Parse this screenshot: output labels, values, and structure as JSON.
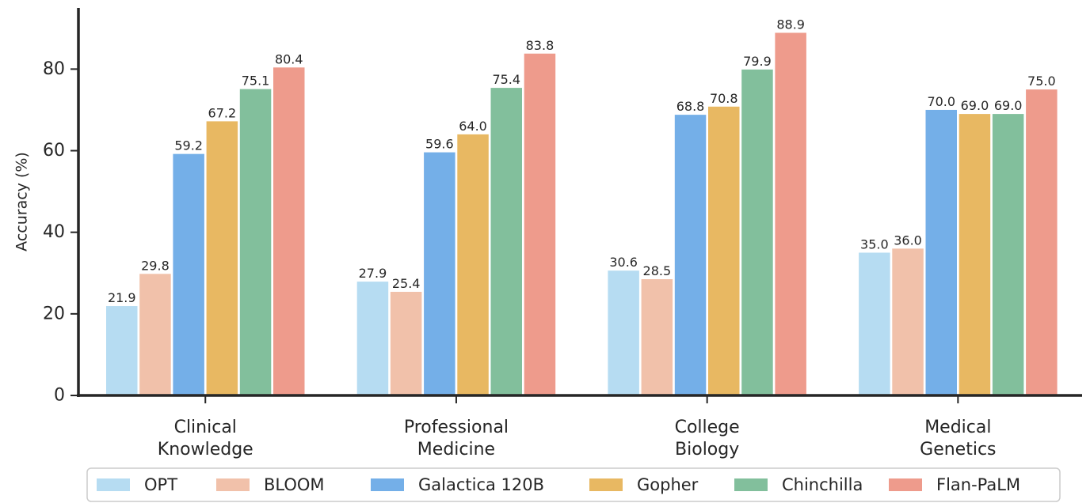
{
  "chart_data": {
    "type": "bar",
    "title": "",
    "xlabel": "",
    "ylabel": "Accuracy (%)",
    "ylim": [
      0,
      95
    ],
    "yticks": [
      0,
      20,
      40,
      60,
      80
    ],
    "categories": [
      [
        "Clinical",
        "Knowledge"
      ],
      [
        "Professional",
        "Medicine"
      ],
      [
        "College",
        "Biology"
      ],
      [
        "Medical",
        "Genetics"
      ]
    ],
    "series": [
      {
        "name": "OPT",
        "color": "#b6dcf2",
        "values": [
          21.9,
          27.9,
          30.6,
          35.0
        ],
        "labels": [
          "21.9",
          "27.9",
          "30.6",
          "35.0"
        ]
      },
      {
        "name": "BLOOM",
        "color": "#f1c1aa",
        "values": [
          29.8,
          25.4,
          28.5,
          36.0
        ],
        "labels": [
          "29.8",
          "25.4",
          "28.5",
          "36.0"
        ]
      },
      {
        "name": "Galactica 120B",
        "color": "#74afe8",
        "values": [
          59.2,
          59.6,
          68.8,
          70.0
        ],
        "labels": [
          "59.2",
          "59.6",
          "68.8",
          "70.0"
        ]
      },
      {
        "name": "Gopher",
        "color": "#e8b862",
        "values": [
          67.2,
          64.0,
          70.8,
          69.0
        ],
        "labels": [
          "67.2",
          "64.0",
          "70.8",
          "69.0"
        ]
      },
      {
        "name": "Chinchilla",
        "color": "#82bf9c",
        "values": [
          75.1,
          75.4,
          79.9,
          69.0
        ],
        "labels": [
          "75.1",
          "75.4",
          "79.9",
          "69.0"
        ]
      },
      {
        "name": "Flan-PaLM",
        "color": "#ee9b8c",
        "values": [
          80.4,
          83.8,
          88.9,
          75.0
        ],
        "labels": [
          "80.4",
          "83.8",
          "88.9",
          "75.0"
        ]
      }
    ],
    "legend": {
      "placement": "bottom"
    },
    "grid": false
  }
}
